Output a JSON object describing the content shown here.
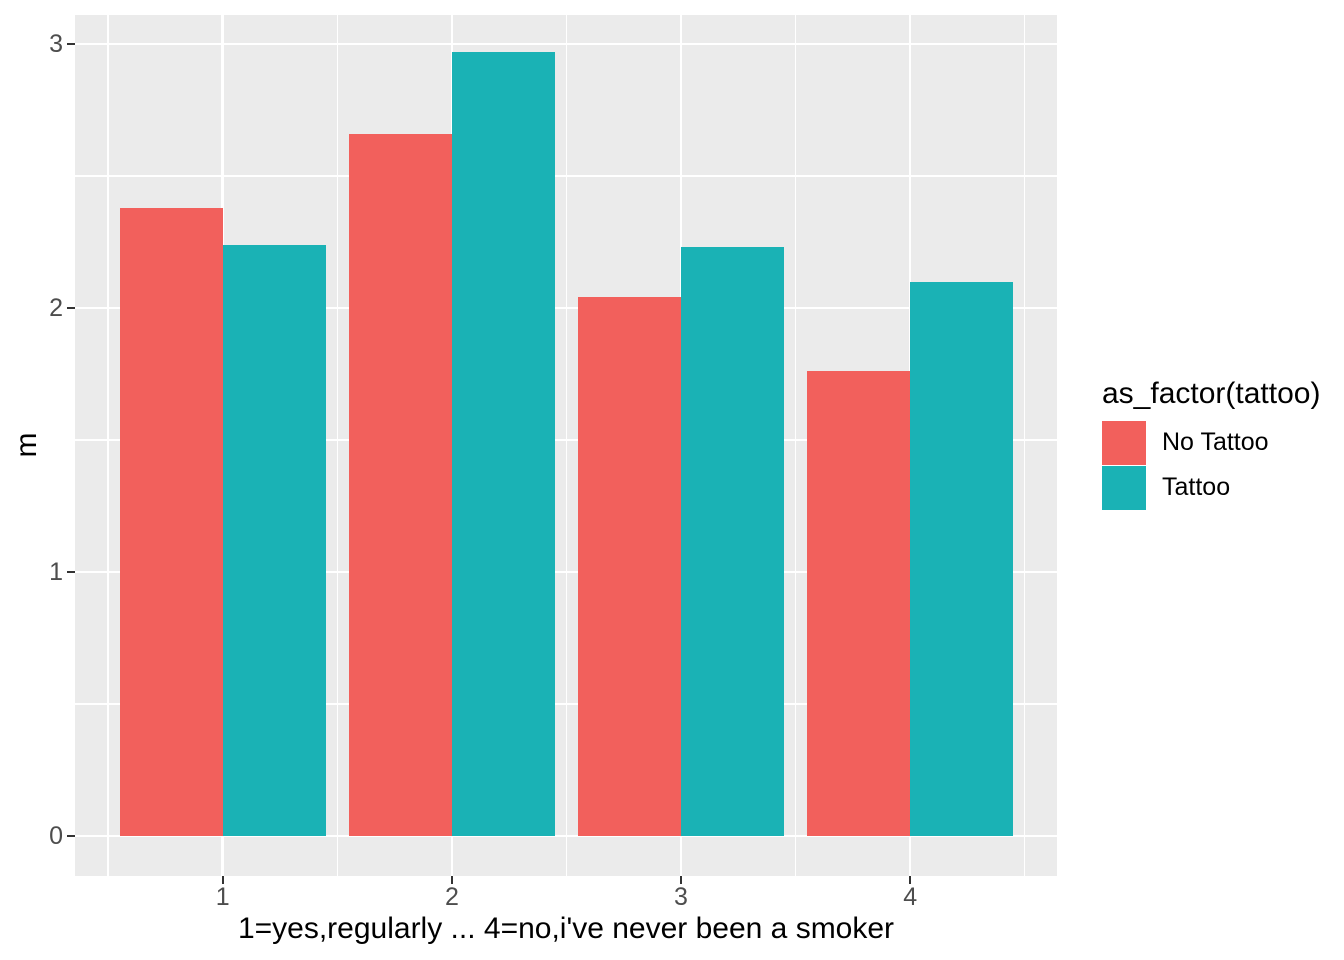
{
  "chart_data": {
    "type": "bar",
    "title": "",
    "xlabel": "1=yes,regularly ... 4=no,i've never been a smoker",
    "ylabel": "m",
    "categories": [
      "1",
      "2",
      "3",
      "4"
    ],
    "series": [
      {
        "name": "No Tattoo",
        "color": "#F2605C",
        "values": [
          2.38,
          2.66,
          2.04,
          1.76
        ]
      },
      {
        "name": "Tattoo",
        "color": "#1AB2B5",
        "values": [
          2.24,
          2.97,
          2.23,
          2.1
        ]
      }
    ],
    "ylim": [
      0,
      3
    ],
    "yticks": [
      0,
      1,
      2,
      3
    ],
    "yticks_minor": [
      0.5,
      1.5,
      2.5
    ],
    "legend": {
      "title": "as_factor(tattoo)",
      "position": "right"
    },
    "grid": "on",
    "panel_background": "#EBEBEB",
    "gridline_color": "#FFFFFF"
  },
  "axis": {
    "tick_color": "#333333",
    "tick_label_color": "#4D4D4D",
    "title_color": "#000000"
  }
}
